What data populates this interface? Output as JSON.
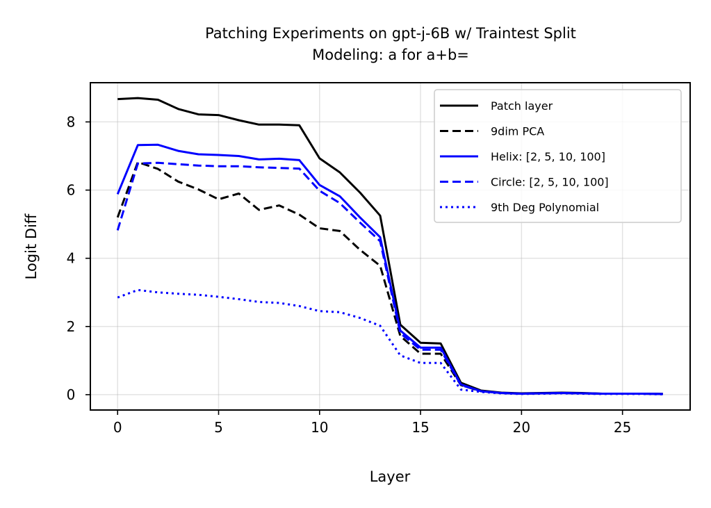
{
  "chart_data": {
    "type": "line",
    "title_line1": "Patching Experiments on gpt-j-6B w/ Traintest Split",
    "title_line2": "Modeling: a for a+b=",
    "xlabel": "Layer",
    "ylabel": "Logit Diff",
    "xlim": [
      -1.35,
      28.35
    ],
    "ylim": [
      -0.45,
      9.15
    ],
    "xticks": [
      0,
      5,
      10,
      15,
      20,
      25
    ],
    "yticks": [
      0,
      2,
      4,
      6,
      8
    ],
    "grid": true,
    "legend_position": "top-right",
    "x": [
      0,
      1,
      2,
      3,
      4,
      5,
      6,
      7,
      8,
      9,
      10,
      11,
      12,
      13,
      14,
      15,
      16,
      17,
      18,
      19,
      20,
      21,
      22,
      23,
      24,
      25,
      26,
      27
    ],
    "series": [
      {
        "name": "Patch layer",
        "color": "#000000",
        "style": "solid",
        "values": [
          8.67,
          8.7,
          8.65,
          8.38,
          8.22,
          8.2,
          8.05,
          7.92,
          7.92,
          7.9,
          6.93,
          6.52,
          5.93,
          5.25,
          2.05,
          1.52,
          1.5,
          0.35,
          0.12,
          0.06,
          0.04,
          0.05,
          0.06,
          0.05,
          0.03,
          0.03,
          0.03,
          0.02
        ]
      },
      {
        "name": "9dim PCA",
        "color": "#000000",
        "style": "dashed",
        "values": [
          5.2,
          6.82,
          6.62,
          6.25,
          6.02,
          5.73,
          5.9,
          5.42,
          5.55,
          5.28,
          4.88,
          4.8,
          4.25,
          3.78,
          1.72,
          1.2,
          1.2,
          0.28,
          0.1,
          0.05,
          0.03,
          0.04,
          0.05,
          0.04,
          0.03,
          0.03,
          0.03,
          0.02
        ]
      },
      {
        "name": "Helix: [2, 5, 10, 100]",
        "color": "#0000ff",
        "style": "solid",
        "values": [
          5.88,
          7.32,
          7.33,
          7.15,
          7.05,
          7.03,
          7.0,
          6.9,
          6.92,
          6.88,
          6.15,
          5.82,
          5.2,
          4.62,
          1.88,
          1.38,
          1.38,
          0.3,
          0.1,
          0.05,
          0.03,
          0.04,
          0.05,
          0.04,
          0.03,
          0.03,
          0.03,
          0.02
        ]
      },
      {
        "name": "Circle: [2, 5, 10, 100]",
        "color": "#0000ff",
        "style": "dashed",
        "values": [
          4.82,
          6.78,
          6.8,
          6.76,
          6.72,
          6.7,
          6.7,
          6.67,
          6.65,
          6.63,
          5.98,
          5.62,
          5.05,
          4.5,
          1.8,
          1.32,
          1.32,
          0.28,
          0.1,
          0.05,
          0.03,
          0.04,
          0.05,
          0.04,
          0.03,
          0.03,
          0.03,
          0.02
        ]
      },
      {
        "name": "9th Deg Polynomial",
        "color": "#0000ff",
        "style": "dotted",
        "values": [
          2.85,
          3.07,
          3.0,
          2.96,
          2.93,
          2.87,
          2.8,
          2.72,
          2.69,
          2.6,
          2.45,
          2.42,
          2.25,
          2.02,
          1.15,
          0.93,
          0.93,
          0.15,
          0.08,
          0.04,
          0.02,
          0.03,
          0.04,
          0.03,
          0.02,
          0.02,
          0.02,
          0.01
        ]
      }
    ]
  }
}
